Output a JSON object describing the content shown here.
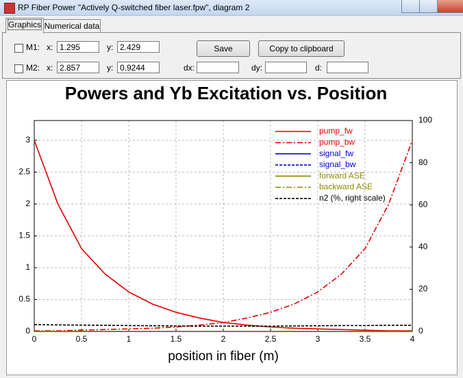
{
  "window": {
    "title": "RP Fiber Power \"Actively Q-switched fiber laser.fpw\", diagram 2"
  },
  "tabs": [
    "Graphics",
    "Numerical data"
  ],
  "controls": {
    "m1": {
      "label": "M1:",
      "x_label": "x:",
      "x": "1.295",
      "y_label": "y:",
      "y": "2.429"
    },
    "m2": {
      "label": "M2:",
      "x_label": "x:",
      "x": "2.857",
      "y_label": "y:",
      "y": "0.9244"
    },
    "save": "Save",
    "copy": "Copy to clipboard",
    "dx_label": "dx:",
    "dy_label": "dy:",
    "d_label": "d:"
  },
  "chart_data": {
    "type": "line",
    "title": "Powers and Yb Excitation vs. Position",
    "x_label": "position in fiber (m)",
    "x": [
      0,
      0.25,
      0.5,
      0.75,
      1,
      1.25,
      1.5,
      1.75,
      2,
      2.25,
      2.5,
      2.75,
      3,
      3.25,
      3.5,
      3.75,
      4
    ],
    "xlim": [
      0,
      4
    ],
    "xticks": [
      0,
      0.5,
      1,
      1.5,
      2,
      2.5,
      3,
      3.5,
      4
    ],
    "ylim": [
      0,
      3.31
    ],
    "yticks": [
      0,
      0.5,
      1,
      1.5,
      2,
      2.5,
      3
    ],
    "y2lim": [
      0,
      100
    ],
    "y2ticks": [
      0,
      20,
      40,
      60,
      80,
      100
    ],
    "grid": true,
    "legend": "upper right",
    "series": [
      {
        "name": "pump_fw",
        "color": "#e00000",
        "style": "solid",
        "values": [
          3.0,
          2.0,
          1.3,
          0.9,
          0.62,
          0.43,
          0.3,
          0.21,
          0.14,
          0.1,
          0.07,
          0.05,
          0.04,
          0.03,
          0.02,
          0.01,
          0.01
        ]
      },
      {
        "name": "pump_bw",
        "color": "#e00000",
        "style": "dashdot",
        "values": [
          0.01,
          0.01,
          0.02,
          0.03,
          0.04,
          0.05,
          0.07,
          0.1,
          0.14,
          0.21,
          0.3,
          0.43,
          0.62,
          0.9,
          1.3,
          2.0,
          3.0
        ]
      },
      {
        "name": "signal_fw",
        "color": "#0000d0",
        "style": "solid",
        "values": [
          0,
          0,
          0,
          0,
          0,
          0,
          0,
          0,
          0,
          0,
          0,
          0,
          0,
          0,
          0,
          0,
          0
        ]
      },
      {
        "name": "signal_bw",
        "color": "#0000d0",
        "style": "dash",
        "values": [
          0,
          0,
          0,
          0,
          0,
          0,
          0,
          0,
          0,
          0,
          0,
          0,
          0,
          0,
          0,
          0,
          0
        ]
      },
      {
        "name": "forward ASE",
        "color": "#8a8a00",
        "style": "solid",
        "values": [
          0,
          0,
          0,
          0,
          0,
          0,
          0,
          0,
          0,
          0,
          0,
          0,
          0,
          0,
          0,
          0,
          0
        ]
      },
      {
        "name": "backward ASE",
        "color": "#8a8a00",
        "style": "dashdot",
        "values": [
          0,
          0,
          0,
          0,
          0,
          0,
          0,
          0,
          0,
          0,
          0,
          0,
          0,
          0,
          0,
          0,
          0
        ]
      },
      {
        "name": "n2 (%, right scale)",
        "color": "#000000",
        "style": "dash",
        "axis": "y2",
        "values": [
          3.2,
          3.1,
          3.0,
          2.9,
          2.8,
          2.7,
          2.6,
          2.5,
          2.5,
          2.5,
          2.5,
          2.6,
          2.7,
          2.8,
          2.8,
          2.9,
          2.9
        ]
      }
    ]
  }
}
